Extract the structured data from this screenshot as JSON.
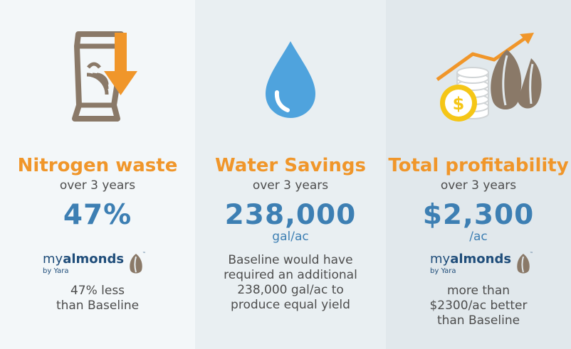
{
  "panels": [
    {
      "title": "Nitrogen waste",
      "subtitle": "over 3 years",
      "value": "47%",
      "brand": {
        "name_light": "my",
        "name_bold": "almonds",
        "by": "by Yara",
        "tm": "™"
      },
      "description_lines": [
        "47% less",
        "than Baseline"
      ],
      "icon": "fertilizer-bag-down-arrow-icon"
    },
    {
      "title": "Water Savings",
      "subtitle": "over 3 years",
      "value": "238,000",
      "unit": "gal/ac",
      "description_lines": [
        "Baseline would have",
        "required an additional",
        "238,000 gal/ac to",
        "produce equal yield"
      ],
      "icon": "water-drop-icon"
    },
    {
      "title": "Total profitability",
      "subtitle": "over 3 years",
      "value": "$2,300",
      "unit": "/ac",
      "brand": {
        "name_light": "my",
        "name_bold": "almonds",
        "by": "by Yara",
        "tm": "™"
      },
      "description_lines": [
        "more than",
        "$2300/ac better",
        "than Baseline"
      ],
      "icon": "coins-almonds-growth-icon"
    }
  ],
  "colors": {
    "orange": "#f0962a",
    "blue": "#3d7fb3",
    "text": "#4d4d4d",
    "brown": "#8a7968",
    "navy": "#1f4d7a",
    "drop": "#4fa3dd",
    "gold": "#f5c617"
  }
}
